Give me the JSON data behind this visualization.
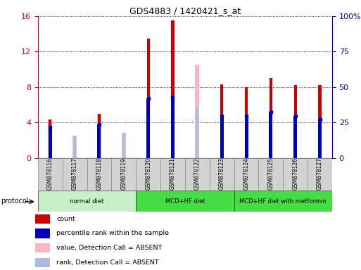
{
  "title": "GDS4883 / 1420421_s_at",
  "samples": [
    "GSM878116",
    "GSM878117",
    "GSM878118",
    "GSM878119",
    "GSM878120",
    "GSM878121",
    "GSM878122",
    "GSM878123",
    "GSM878124",
    "GSM878125",
    "GSM878126",
    "GSM878127"
  ],
  "count_values": [
    4.3,
    0.0,
    5.0,
    0.0,
    13.5,
    15.5,
    0.0,
    8.3,
    8.0,
    9.0,
    8.2,
    8.2
  ],
  "percentile_values": [
    3.5,
    0.0,
    3.8,
    0.0,
    6.7,
    6.9,
    0.0,
    4.7,
    4.7,
    5.2,
    4.7,
    4.3
  ],
  "absent_value_values": [
    4.3,
    2.5,
    5.0,
    2.8,
    0.0,
    0.0,
    10.5,
    0.0,
    0.0,
    0.0,
    0.0,
    0.0
  ],
  "absent_rank_values": [
    3.5,
    2.5,
    3.8,
    2.8,
    0.0,
    0.0,
    5.8,
    0.0,
    0.0,
    0.0,
    0.0,
    0.0
  ],
  "ylim_left": [
    0,
    16
  ],
  "ylim_right": [
    0,
    100
  ],
  "yticks_left": [
    0,
    4,
    8,
    12,
    16
  ],
  "yticks_right": [
    0,
    25,
    50,
    75,
    100
  ],
  "ytick_labels_right": [
    "0",
    "25",
    "50",
    "75",
    "100%"
  ],
  "bar_width": 0.12,
  "protocols": [
    {
      "label": "normal diet",
      "start": 0,
      "end": 4
    },
    {
      "label": "MCD+HF diet",
      "start": 4,
      "end": 8
    },
    {
      "label": "MCD+HF diet with metformin",
      "start": 8,
      "end": 12
    }
  ],
  "normal_diet_color": "#C8F0C8",
  "mcd_diet_color": "#44DD44",
  "metformin_diet_color": "#44DD44",
  "bar_color_count": "#CC0000",
  "bar_color_percentile": "#0000BB",
  "bar_color_absent_value": "#FFB6C1",
  "bar_color_absent_rank": "#AABBDD",
  "tick_bg_color": "#D3D3D3",
  "legend_items": [
    {
      "color": "#CC0000",
      "label": "count"
    },
    {
      "color": "#0000BB",
      "label": "percentile rank within the sample"
    },
    {
      "color": "#FFB6C1",
      "label": "value, Detection Call = ABSENT"
    },
    {
      "color": "#AABBDD",
      "label": "rank, Detection Call = ABSENT"
    }
  ],
  "left_axis_color": "#CC0000",
  "right_axis_color": "#0000BB",
  "grid_color": "#000000",
  "protocol_arrow_label": "protocol"
}
